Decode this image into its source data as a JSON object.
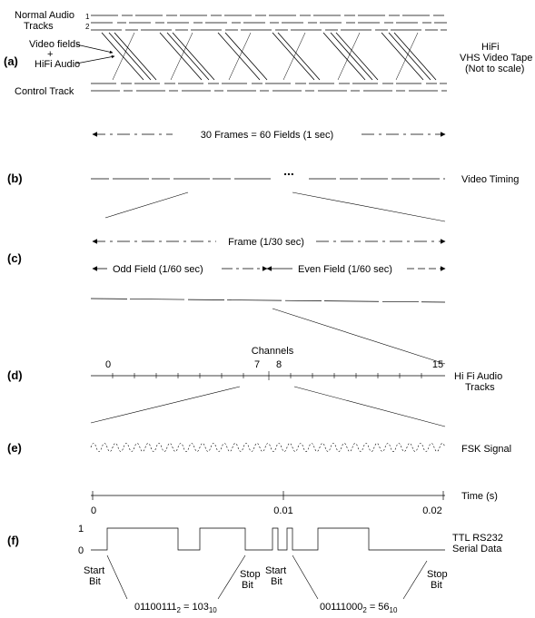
{
  "panel_labels": [
    "(a)",
    "(b)",
    "(c)",
    "(d)",
    "(e)",
    "(f)"
  ],
  "a": {
    "normal_audio_1": "Normal Audio",
    "normal_audio_2": "Tracks",
    "track_num_1": "1",
    "track_num_2": "2",
    "video_fields": "Video fields",
    "plus": "+",
    "hifi_audio": "HiFi Audio",
    "control_track": "Control Track",
    "right_1": "HiFi",
    "right_2": "VHS Video Tape",
    "right_3": "(Not to scale)",
    "span_label": "30 Frames = 60 Fields (1 sec)"
  },
  "b": {
    "ellipsis": "...",
    "right": "Video Timing"
  },
  "c": {
    "frame": "Frame (1/30 sec)",
    "odd": "Odd Field (1/60 sec)",
    "even": "Even Field (1/60 sec)"
  },
  "d": {
    "channels": "Channels",
    "ch0": "0",
    "ch7": "7",
    "ch8": "8",
    "ch15": "15",
    "right_1": "Hi Fi Audio",
    "right_2": "Tracks"
  },
  "e": {
    "right": "FSK Signal",
    "time_label": "Time (s)",
    "t0": "0",
    "t1": "0.01",
    "t2": "0.02"
  },
  "f": {
    "level_1": "1",
    "level_0": "0",
    "right_1": "TTL RS232",
    "right_2": "Serial Data",
    "start_1": "Start",
    "bit_1": "Bit",
    "stop_1": "Stop",
    "bit_2": "Bit",
    "start_2": "Start",
    "bit_3": "Bit",
    "stop_2": "Stop",
    "bit_4": "Bit",
    "byte1_bin": "01100111",
    "byte1_sub": "2",
    "byte1_eq": " = 103",
    "byte1_sub2": "10",
    "byte2_bin": "00111000",
    "byte2_sub": "2",
    "byte2_eq": " = 56",
    "byte2_sub2": "10"
  }
}
